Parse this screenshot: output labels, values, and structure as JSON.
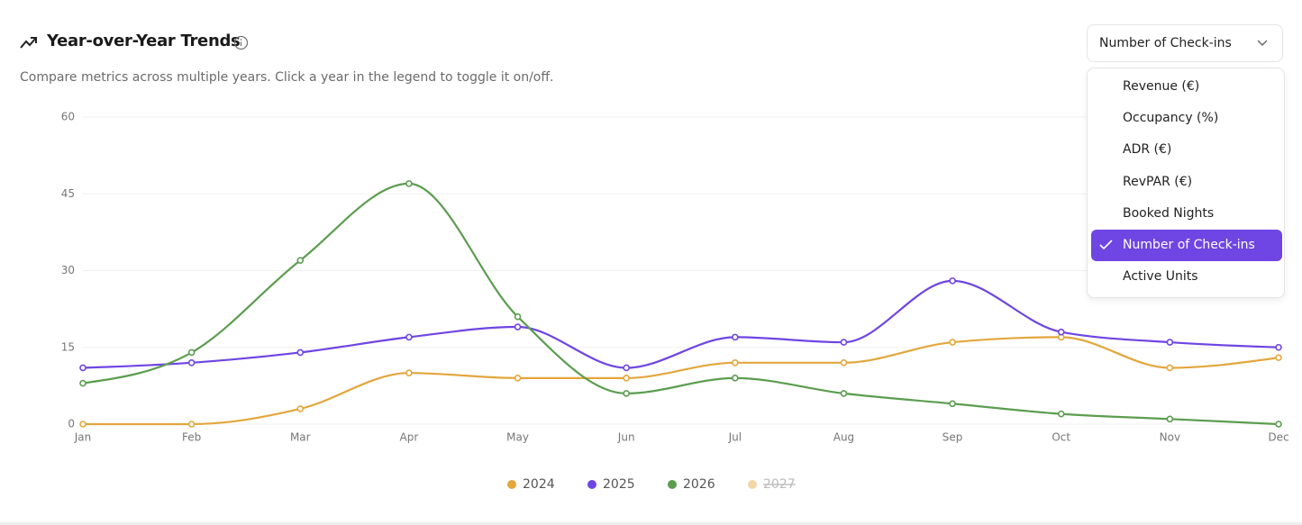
{
  "header": {
    "title": "Year-over-Year Trends",
    "subtitle": "Compare metrics across multiple years. Click a year in the legend to toggle it on/off."
  },
  "dropdown": {
    "selected": "Number of Check-ins",
    "options": [
      "Revenue (€)",
      "Occupancy (%)",
      "ADR (€)",
      "RevPAR (€)",
      "Booked Nights",
      "Number of Check-ins",
      "Active Units"
    ]
  },
  "chart_data": {
    "type": "line",
    "categories": [
      "Jan",
      "Feb",
      "Mar",
      "Apr",
      "May",
      "Jun",
      "Jul",
      "Aug",
      "Sep",
      "Oct",
      "Nov",
      "Dec"
    ],
    "series": [
      {
        "name": "2024",
        "color": "#e3a63c",
        "values": [
          0,
          0,
          3,
          10,
          9,
          9,
          12,
          12,
          16,
          17,
          11,
          13
        ]
      },
      {
        "name": "2025",
        "color": "#6f45e3",
        "values": [
          11,
          12,
          14,
          17,
          19,
          11,
          17,
          16,
          28,
          18,
          16,
          15
        ]
      },
      {
        "name": "2026",
        "color": "#5b9d4f",
        "values": [
          8,
          14,
          32,
          47,
          21,
          6,
          9,
          6,
          4,
          2,
          1,
          0
        ]
      },
      {
        "name": "2027",
        "color": "#f2d7a6",
        "hidden": true,
        "values": [
          null,
          null,
          null,
          null,
          null,
          null,
          null,
          null,
          null,
          null,
          null,
          null
        ]
      }
    ],
    "ylim": [
      0,
      60
    ],
    "yticks": [
      0,
      15,
      30,
      45,
      60
    ],
    "grid": true,
    "smooth": true,
    "legend": "bottom"
  }
}
